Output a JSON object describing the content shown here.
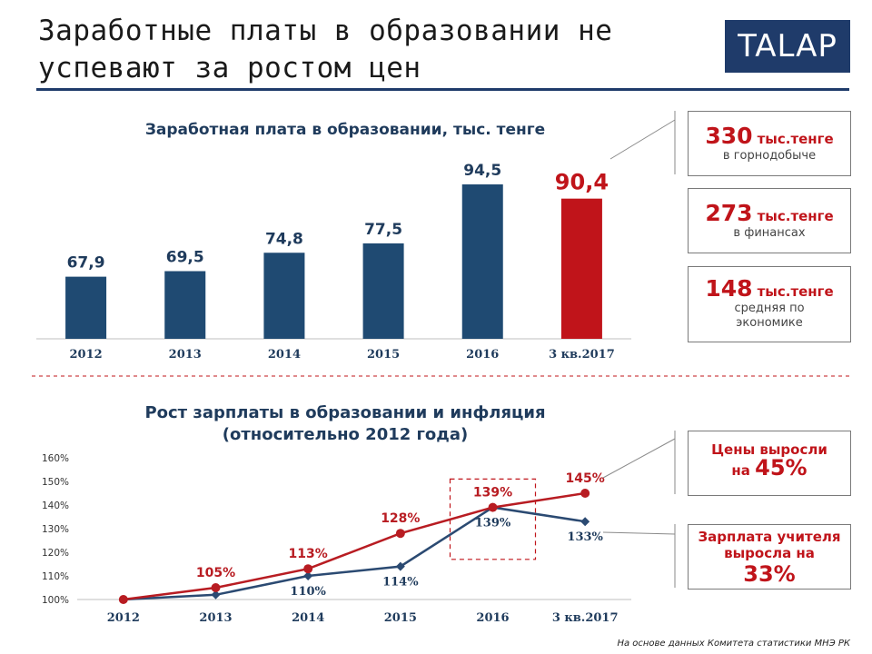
{
  "header": {
    "title": "Заработные платы в образовании не успевают за ростом цен",
    "logo": "TALAP"
  },
  "chart_data": [
    {
      "type": "bar",
      "title": "Заработная плата в образовании, тыс. тенге",
      "categories": [
        "2012",
        "2013",
        "2014",
        "2015",
        "2016",
        "3 кв.2017"
      ],
      "values": [
        67.9,
        69.5,
        74.8,
        77.5,
        94.5,
        90.4
      ],
      "value_labels": [
        "67,9",
        "69,5",
        "74,8",
        "77,5",
        "94,5",
        "90,4"
      ],
      "highlight_index": 5,
      "ylim": [
        50,
        100
      ]
    },
    {
      "type": "line",
      "title": "Рост зарплаты в образовании и инфляция",
      "subtitle": "(относительно 2012 года)",
      "categories": [
        "2012",
        "2013",
        "2014",
        "2015",
        "2016",
        "3 кв.2017"
      ],
      "y_ticks": [
        "100%",
        "110%",
        "120%",
        "130%",
        "140%",
        "150%",
        "160%"
      ],
      "ylim": [
        100,
        160
      ],
      "series": [
        {
          "name": "Цены",
          "values": [
            100,
            105,
            113,
            128,
            139,
            145
          ],
          "labels": [
            "",
            "105%",
            "113%",
            "128%",
            "139%",
            "145%"
          ]
        },
        {
          "name": "Зарплата учителя",
          "values": [
            100,
            102,
            110,
            114,
            139,
            133
          ],
          "labels": [
            "",
            "",
            "110%",
            "114%",
            "139%",
            "133%"
          ]
        }
      ]
    }
  ],
  "callouts": {
    "mining": {
      "value": "330",
      "unit": "тыс.тенге",
      "desc": "в горнодобыче"
    },
    "finance": {
      "value": "273",
      "unit": "тыс.тенге",
      "desc": "в финансах"
    },
    "economy": {
      "value": "148",
      "unit": "тыс.тенге",
      "desc": "средняя по экономике"
    },
    "prices": {
      "text": "Цены выросли на",
      "value": "45%"
    },
    "salary": {
      "text": "Зарплата учителя выросла на",
      "value": "33%"
    }
  },
  "colors": {
    "navy": "#1f4a72",
    "red": "#c0141a",
    "price_line": "#b81c22",
    "salary_line": "#2b4a72"
  },
  "footer": {
    "source": "На основе данных Комитета статистики МНЭ РК"
  }
}
